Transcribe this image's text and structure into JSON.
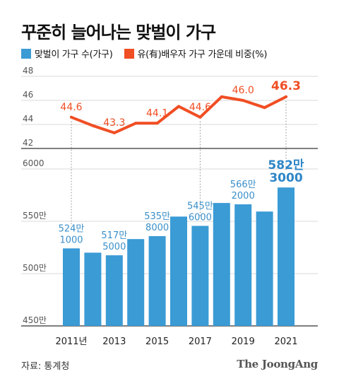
{
  "title": "꾸준히 늘어나는 맞벌이 가구",
  "source": "자료: 통계청",
  "logo": "The JoongAng",
  "colors": {
    "bar": "#3a9bd5",
    "line": "#f04e23",
    "axis": "#333333",
    "grid": "#d9d9d9"
  },
  "chart_data": [
    {
      "type": "line",
      "series": [
        {
          "name": "유(有)배우자 가구 가운데 비중(%)",
          "x": [
            2011,
            2012,
            2013,
            2014,
            2015,
            2016,
            2017,
            2018,
            2019,
            2020,
            2021
          ],
          "values": [
            44.6,
            43.9,
            43.3,
            44.1,
            44.1,
            45.5,
            44.6,
            46.3,
            46.0,
            45.4,
            46.3
          ]
        }
      ],
      "ylim": [
        42,
        48
      ],
      "yticks": [
        "48",
        "46",
        "44",
        "42"
      ],
      "labels": [
        {
          "x": 2011,
          "text": "44.6"
        },
        {
          "x": 2013,
          "text": "43.3"
        },
        {
          "x": 2015,
          "text": "44.1"
        },
        {
          "x": 2017,
          "text": "44.6"
        },
        {
          "x": 2019,
          "text": "46.0"
        },
        {
          "x": 2021,
          "text": "46.3"
        }
      ]
    },
    {
      "type": "bar",
      "series": [
        {
          "name": "맞벌이 가구 수(가구)",
          "x": [
            2011,
            2012,
            2013,
            2014,
            2015,
            2016,
            2017,
            2018,
            2019,
            2020,
            2021
          ],
          "values": [
            5241000,
            5200000,
            5175000,
            5330000,
            5358000,
            5545000,
            5456000,
            5675000,
            5662000,
            5593000,
            5823000
          ]
        }
      ],
      "ylim": [
        4500000,
        6000000
      ],
      "yticks": [
        "6000",
        "550만",
        "500만",
        "450만"
      ],
      "xticks": [
        "2011년",
        "2013",
        "2015",
        "2017",
        "2019",
        "2021"
      ],
      "labels": [
        {
          "x": 2011,
          "line1": "524만",
          "line2": "1000"
        },
        {
          "x": 2013,
          "line1": "517만",
          "line2": "5000"
        },
        {
          "x": 2015,
          "line1": "535만",
          "line2": "8000"
        },
        {
          "x": 2017,
          "line1": "545만",
          "line2": "6000"
        },
        {
          "x": 2019,
          "line1": "566만",
          "line2": "2000"
        },
        {
          "x": 2021,
          "line1": "582만",
          "line2": "3000"
        }
      ]
    }
  ]
}
